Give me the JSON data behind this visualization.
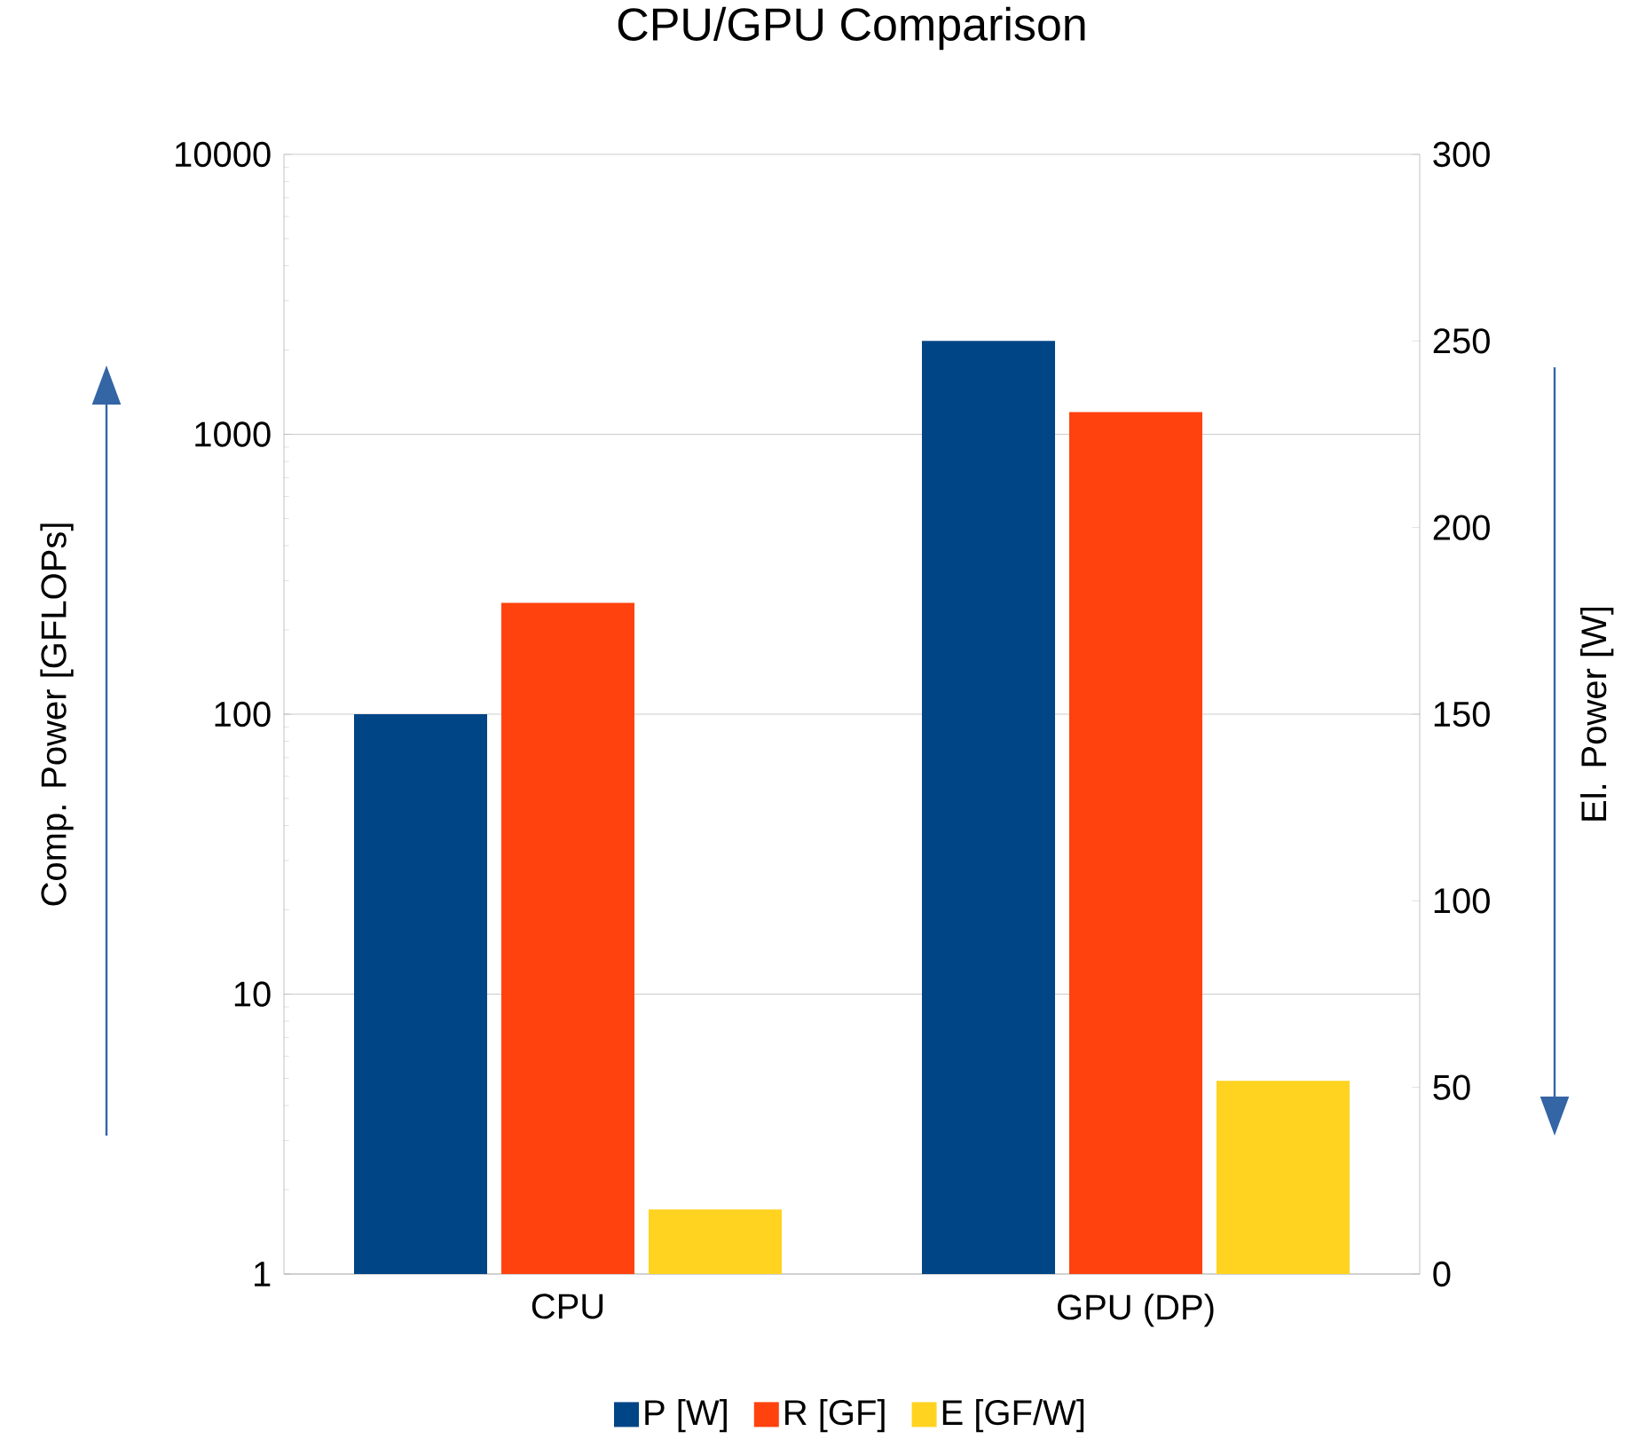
{
  "chart_data": {
    "type": "bar",
    "title": "CPU/GPU Comparison",
    "categories": [
      "CPU",
      "GPU (DP)"
    ],
    "ylabel": "Comp. Power [GFLOPs]",
    "y2label": "El. Power [W]",
    "log": "y",
    "ylim": [
      1,
      10000
    ],
    "yticks": [
      1,
      10,
      100,
      1000,
      10000
    ],
    "y2lim": [
      0,
      300
    ],
    "y2ticks": [
      0,
      50,
      100,
      150,
      200,
      250,
      300
    ],
    "grid": "y",
    "legend": "bottom",
    "series": [
      {
        "name": "P [W]",
        "color": "#004586",
        "values": [
          150,
          250
        ],
        "axis": "y2"
      },
      {
        "name": "R [GF]",
        "color": "#ff420e",
        "values": [
          250,
          1200
        ]
      },
      {
        "name": "E [GF/W]",
        "color": "#ffd320",
        "values": [
          1.7,
          4.9
        ]
      }
    ]
  }
}
